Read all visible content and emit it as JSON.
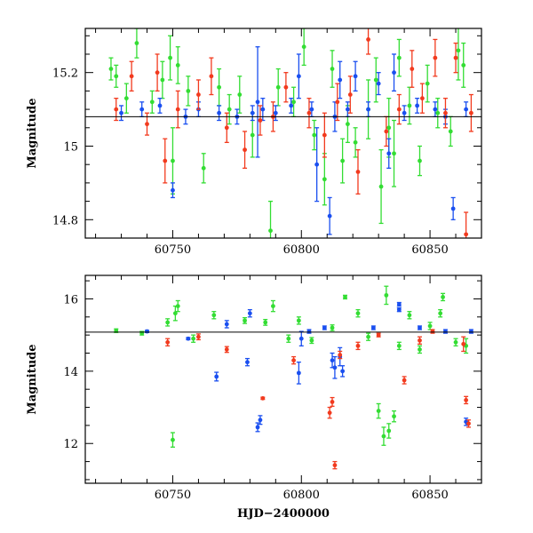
{
  "chart_data": [
    {
      "type": "scatter",
      "panel": "top",
      "title": "",
      "xlabel": "",
      "ylabel": "Magnitude",
      "xlim": [
        60716,
        60870
      ],
      "ylim": [
        15.32,
        14.75
      ],
      "y_inverted": true,
      "x_ticks_major": [
        60750,
        60800,
        60850
      ],
      "x_ticks_minor_step": 10,
      "x_tick_labels": [
        "60750",
        "60800",
        "60850"
      ],
      "y_ticks_major": [
        14.8,
        15,
        15.2
      ],
      "y_ticks_minor_step": 0.05,
      "y_tick_labels": [
        "14.8",
        "15",
        "15.2"
      ],
      "reference_line_y": 15.08,
      "grid": false,
      "legend": "none",
      "colors": {
        "green": "#33dd33",
        "blue": "#1a4ff0",
        "red": "#f23a1e"
      },
      "series": [
        {
          "color": "green",
          "points": [
            [
              60726,
              15.21,
              0.03
            ],
            [
              60728,
              15.19,
              0.03
            ],
            [
              60732,
              15.13,
              0.04
            ],
            [
              60736,
              15.28,
              0.04
            ],
            [
              60742,
              15.12,
              0.03
            ],
            [
              60746,
              15.18,
              0.05
            ],
            [
              60749,
              15.24,
              0.06
            ],
            [
              60750,
              14.96,
              0.09
            ],
            [
              60752,
              15.22,
              0.05
            ],
            [
              60756,
              15.15,
              0.04
            ],
            [
              60762,
              14.94,
              0.04
            ],
            [
              60768,
              15.16,
              0.05
            ],
            [
              60772,
              15.1,
              0.04
            ],
            [
              60776,
              15.14,
              0.05
            ],
            [
              60781,
              15.03,
              0.06
            ],
            [
              60788,
              14.77,
              0.08
            ],
            [
              60791,
              15.16,
              0.05
            ],
            [
              60797,
              15.12,
              0.04
            ],
            [
              60801,
              15.27,
              0.05
            ],
            [
              60805,
              15.03,
              0.04
            ],
            [
              60809,
              14.91,
              0.07
            ],
            [
              60812,
              15.21,
              0.05
            ],
            [
              60816,
              14.96,
              0.06
            ],
            [
              60818,
              15.06,
              0.05
            ],
            [
              60821,
              15.01,
              0.04
            ],
            [
              60826,
              15.1,
              0.08
            ],
            [
              60829,
              15.18,
              0.06
            ],
            [
              60831,
              14.89,
              0.1
            ],
            [
              60834,
              15.05,
              0.08
            ],
            [
              60836,
              14.98,
              0.09
            ],
            [
              60838,
              15.24,
              0.05
            ],
            [
              60842,
              15.11,
              0.05
            ],
            [
              60846,
              14.96,
              0.04
            ],
            [
              60849,
              15.17,
              0.05
            ],
            [
              60853,
              15.09,
              0.04
            ],
            [
              60858,
              15.04,
              0.04
            ],
            [
              60861,
              15.26,
              0.08
            ],
            [
              60863,
              15.22,
              0.06
            ]
          ]
        },
        {
          "color": "blue",
          "points": [
            [
              60730,
              15.09,
              0.02
            ],
            [
              60738,
              15.1,
              0.02
            ],
            [
              60745,
              15.11,
              0.02
            ],
            [
              60750,
              14.88,
              0.02
            ],
            [
              60755,
              15.08,
              0.02
            ],
            [
              60760,
              15.1,
              0.02
            ],
            [
              60768,
              15.09,
              0.02
            ],
            [
              60775,
              15.08,
              0.02
            ],
            [
              60781,
              15.09,
              0.02
            ],
            [
              60783,
              15.12,
              0.15
            ],
            [
              60785,
              15.1,
              0.03
            ],
            [
              60790,
              15.09,
              0.02
            ],
            [
              60796,
              15.11,
              0.02
            ],
            [
              60799,
              15.19,
              0.06
            ],
            [
              60804,
              15.1,
              0.02
            ],
            [
              60806,
              14.95,
              0.1
            ],
            [
              60811,
              14.81,
              0.05
            ],
            [
              60813,
              15.08,
              0.04
            ],
            [
              60815,
              15.18,
              0.05
            ],
            [
              60818,
              15.1,
              0.02
            ],
            [
              60821,
              15.19,
              0.04
            ],
            [
              60826,
              15.1,
              0.02
            ],
            [
              60830,
              15.17,
              0.03
            ],
            [
              60834,
              14.98,
              0.04
            ],
            [
              60836,
              15.2,
              0.05
            ],
            [
              60840,
              15.09,
              0.02
            ],
            [
              60845,
              15.11,
              0.02
            ],
            [
              60852,
              15.1,
              0.02
            ],
            [
              60856,
              15.08,
              0.02
            ],
            [
              60859,
              14.83,
              0.03
            ],
            [
              60864,
              15.1,
              0.02
            ]
          ]
        },
        {
          "color": "red",
          "points": [
            [
              60728,
              15.1,
              0.03
            ],
            [
              60734,
              15.19,
              0.04
            ],
            [
              60740,
              15.06,
              0.03
            ],
            [
              60744,
              15.2,
              0.05
            ],
            [
              60747,
              14.96,
              0.06
            ],
            [
              60752,
              15.1,
              0.05
            ],
            [
              60760,
              15.14,
              0.04
            ],
            [
              60765,
              15.19,
              0.05
            ],
            [
              60771,
              15.05,
              0.04
            ],
            [
              60778,
              14.99,
              0.05
            ],
            [
              60784,
              15.07,
              0.04
            ],
            [
              60789,
              15.08,
              0.04
            ],
            [
              60794,
              15.16,
              0.04
            ],
            [
              60803,
              15.09,
              0.04
            ],
            [
              60809,
              15.03,
              0.06
            ],
            [
              60814,
              15.12,
              0.05
            ],
            [
              60819,
              15.14,
              0.05
            ],
            [
              60822,
              14.93,
              0.06
            ],
            [
              60826,
              15.29,
              0.04
            ],
            [
              60833,
              15.04,
              0.04
            ],
            [
              60838,
              15.1,
              0.04
            ],
            [
              60843,
              15.21,
              0.05
            ],
            [
              60847,
              15.13,
              0.04
            ],
            [
              60852,
              15.24,
              0.05
            ],
            [
              60856,
              15.09,
              0.04
            ],
            [
              60860,
              15.24,
              0.04
            ],
            [
              60864,
              14.76,
              0.06
            ],
            [
              60866,
              15.09,
              0.05
            ]
          ]
        }
      ]
    },
    {
      "type": "scatter",
      "panel": "bottom",
      "title": "",
      "xlabel": "HJD−2400000",
      "ylabel": "Magnitude",
      "xlim": [
        60716,
        60870
      ],
      "ylim": [
        16.65,
        10.9
      ],
      "y_inverted": true,
      "x_ticks_major": [
        60750,
        60800,
        60850
      ],
      "x_ticks_minor_step": 10,
      "x_tick_labels": [
        "60750",
        "60800",
        "60850"
      ],
      "y_ticks_major": [
        12,
        14,
        16
      ],
      "y_ticks_minor_step": 0.5,
      "y_tick_labels": [
        "12",
        "14",
        "16"
      ],
      "reference_line_y": 15.08,
      "grid": false,
      "legend": "none",
      "colors": {
        "green": "#33dd33",
        "blue": "#1a4ff0",
        "red": "#f23a1e"
      },
      "series": [
        {
          "color": "green",
          "points": [
            [
              60728,
              15.12,
              0.05
            ],
            [
              60738,
              15.05,
              0.05
            ],
            [
              60748,
              15.35,
              0.1
            ],
            [
              60750,
              12.1,
              0.2
            ],
            [
              60751,
              15.6,
              0.2
            ],
            [
              60752,
              15.8,
              0.15
            ],
            [
              60758,
              14.9,
              0.1
            ],
            [
              60766,
              15.55,
              0.1
            ],
            [
              60778,
              15.4,
              0.08
            ],
            [
              60786,
              15.35,
              0.08
            ],
            [
              60789,
              15.8,
              0.15
            ],
            [
              60795,
              14.9,
              0.1
            ],
            [
              60799,
              15.4,
              0.1
            ],
            [
              60804,
              14.85,
              0.08
            ],
            [
              60812,
              15.2,
              0.08
            ],
            [
              60817,
              16.05,
              0.05
            ],
            [
              60822,
              15.6,
              0.1
            ],
            [
              60826,
              14.95,
              0.1
            ],
            [
              60830,
              12.9,
              0.2
            ],
            [
              60832,
              12.2,
              0.25
            ],
            [
              60833,
              16.1,
              0.25
            ],
            [
              60834,
              12.35,
              0.2
            ],
            [
              60836,
              12.75,
              0.15
            ],
            [
              60838,
              14.7,
              0.1
            ],
            [
              60842,
              15.55,
              0.1
            ],
            [
              60846,
              14.6,
              0.1
            ],
            [
              60850,
              15.25,
              0.1
            ],
            [
              60854,
              15.6,
              0.1
            ],
            [
              60855,
              16.05,
              0.1
            ],
            [
              60860,
              14.8,
              0.1
            ],
            [
              60864,
              14.7,
              0.2
            ]
          ]
        },
        {
          "color": "blue",
          "points": [
            [
              60740,
              15.1,
              0.03
            ],
            [
              60756,
              14.9,
              0.03
            ],
            [
              60767,
              13.85,
              0.12
            ],
            [
              60771,
              15.3,
              0.1
            ],
            [
              60779,
              14.25,
              0.1
            ],
            [
              60780,
              15.6,
              0.1
            ],
            [
              60783,
              12.45,
              0.12
            ],
            [
              60784,
              12.65,
              0.12
            ],
            [
              60799,
              13.95,
              0.3
            ],
            [
              60800,
              14.9,
              0.2
            ],
            [
              60803,
              15.1,
              0.05
            ],
            [
              60809,
              15.2,
              0.05
            ],
            [
              60812,
              14.3,
              0.2
            ],
            [
              60813,
              14.1,
              0.3
            ],
            [
              60815,
              14.4,
              0.25
            ],
            [
              60816,
              14.0,
              0.15
            ],
            [
              60828,
              15.2,
              0.05
            ],
            [
              60838,
              15.7,
              0.05
            ],
            [
              60838,
              15.85,
              0.05
            ],
            [
              60846,
              15.2,
              0.05
            ],
            [
              60856,
              15.1,
              0.05
            ],
            [
              60864,
              12.6,
              0.1
            ],
            [
              60866,
              15.1,
              0.05
            ]
          ]
        },
        {
          "color": "red",
          "points": [
            [
              60748,
              14.8,
              0.1
            ],
            [
              60760,
              14.95,
              0.08
            ],
            [
              60771,
              14.6,
              0.08
            ],
            [
              60785,
              13.25,
              0.03
            ],
            [
              60797,
              14.3,
              0.1
            ],
            [
              60811,
              12.85,
              0.15
            ],
            [
              60812,
              13.15,
              0.12
            ],
            [
              60813,
              11.4,
              0.1
            ],
            [
              60815,
              14.45,
              0.1
            ],
            [
              60822,
              14.7,
              0.1
            ],
            [
              60830,
              15.0,
              0.05
            ],
            [
              60840,
              13.75,
              0.1
            ],
            [
              60846,
              14.85,
              0.1
            ],
            [
              60851,
              15.1,
              0.05
            ],
            [
              60863,
              14.75,
              0.2
            ],
            [
              60864,
              13.2,
              0.1
            ],
            [
              60865,
              12.55,
              0.1
            ]
          ]
        }
      ]
    }
  ]
}
